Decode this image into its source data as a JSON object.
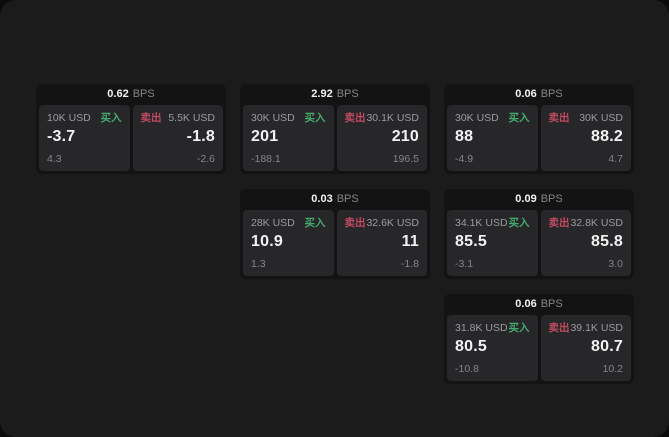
{
  "colors": {
    "outer-bg": "#0b0b0c",
    "page-bg": "#1b1b1c",
    "card-bg": "#131314",
    "tile-bg": "#27272a",
    "text-bright": "#f2f2f3",
    "text-dim": "#85858a",
    "text-dim2": "#9b9ba0",
    "buy-green": "#44aa6d",
    "sell-red": "#c04a60"
  },
  "labels": {
    "buy": "买入",
    "sell": "卖出",
    "bps_unit": "BPS"
  },
  "cards": [
    {
      "col": 1,
      "row": 1,
      "bps": "0.62",
      "buy": {
        "size": "10K USD",
        "value": "-3.7",
        "delta": "4.3"
      },
      "sell": {
        "size": "5.5K USD",
        "value": "-1.8",
        "delta": "-2.6"
      }
    },
    {
      "col": 2,
      "row": 1,
      "bps": "2.92",
      "buy": {
        "size": "30K USD",
        "value": "201",
        "delta": "-188.1"
      },
      "sell": {
        "size": "30.1K USD",
        "value": "210",
        "delta": "196.5"
      }
    },
    {
      "col": 3,
      "row": 1,
      "bps": "0.06",
      "buy": {
        "size": "30K USD",
        "value": "88",
        "delta": "-4.9"
      },
      "sell": {
        "size": "30K USD",
        "value": "88.2",
        "delta": "4.7"
      }
    },
    {
      "col": 2,
      "row": 2,
      "bps": "0.03",
      "buy": {
        "size": "28K USD",
        "value": "10.9",
        "delta": "1.3"
      },
      "sell": {
        "size": "32.6K USD",
        "value": "11",
        "delta": "-1.8"
      }
    },
    {
      "col": 3,
      "row": 2,
      "bps": "0.09",
      "buy": {
        "size": "34.1K USD",
        "value": "85.5",
        "delta": "-3.1"
      },
      "sell": {
        "size": "32.8K USD",
        "value": "85.8",
        "delta": "3.0"
      }
    },
    {
      "col": 3,
      "row": 3,
      "bps": "0.06",
      "buy": {
        "size": "31.8K USD",
        "value": "80.5",
        "delta": "-10.8"
      },
      "sell": {
        "size": "39.1K USD",
        "value": "80.7",
        "delta": "10.2"
      }
    }
  ]
}
